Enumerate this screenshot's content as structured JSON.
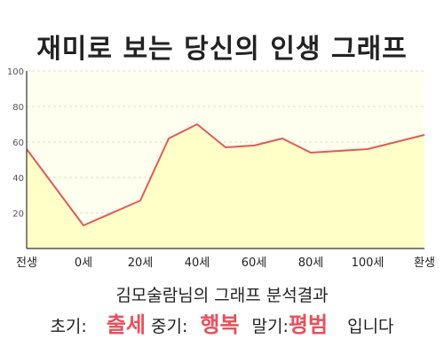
{
  "title": "재미로 보는 당신의 인생 그래프",
  "chart_data": {
    "type": "area",
    "x_categories": [
      "전생",
      "0세",
      "20세",
      "40세",
      "60세",
      "80세",
      "100세",
      "환생"
    ],
    "points": [
      {
        "x": "전생",
        "y": 56
      },
      {
        "x": "0세",
        "y": 13
      },
      {
        "x": "20세",
        "y": 27
      },
      {
        "x": "30세",
        "y": 62
      },
      {
        "x": "40세",
        "y": 70
      },
      {
        "x": "50세",
        "y": 57
      },
      {
        "x": "60세",
        "y": 58
      },
      {
        "x": "70세",
        "y": 62
      },
      {
        "x": "80세",
        "y": 54
      },
      {
        "x": "100세",
        "y": 56
      },
      {
        "x": "환생",
        "y": 64
      }
    ],
    "ylim": [
      0,
      100
    ],
    "yticks": [
      20,
      40,
      60,
      80,
      100
    ],
    "grid": true,
    "colors": {
      "line": "#e05a5a",
      "fill": "#ffffc8",
      "plot_bg": "#fffff0",
      "grid": "#e2e2c8"
    }
  },
  "summary": "김모술람님의 그래프 분석결과",
  "phases": {
    "early_label": "초기:",
    "early_value": "출세",
    "mid_label": "중기:",
    "mid_value": "행복",
    "late_label": "말기:",
    "late_value": "평범",
    "ending": "입니다"
  }
}
